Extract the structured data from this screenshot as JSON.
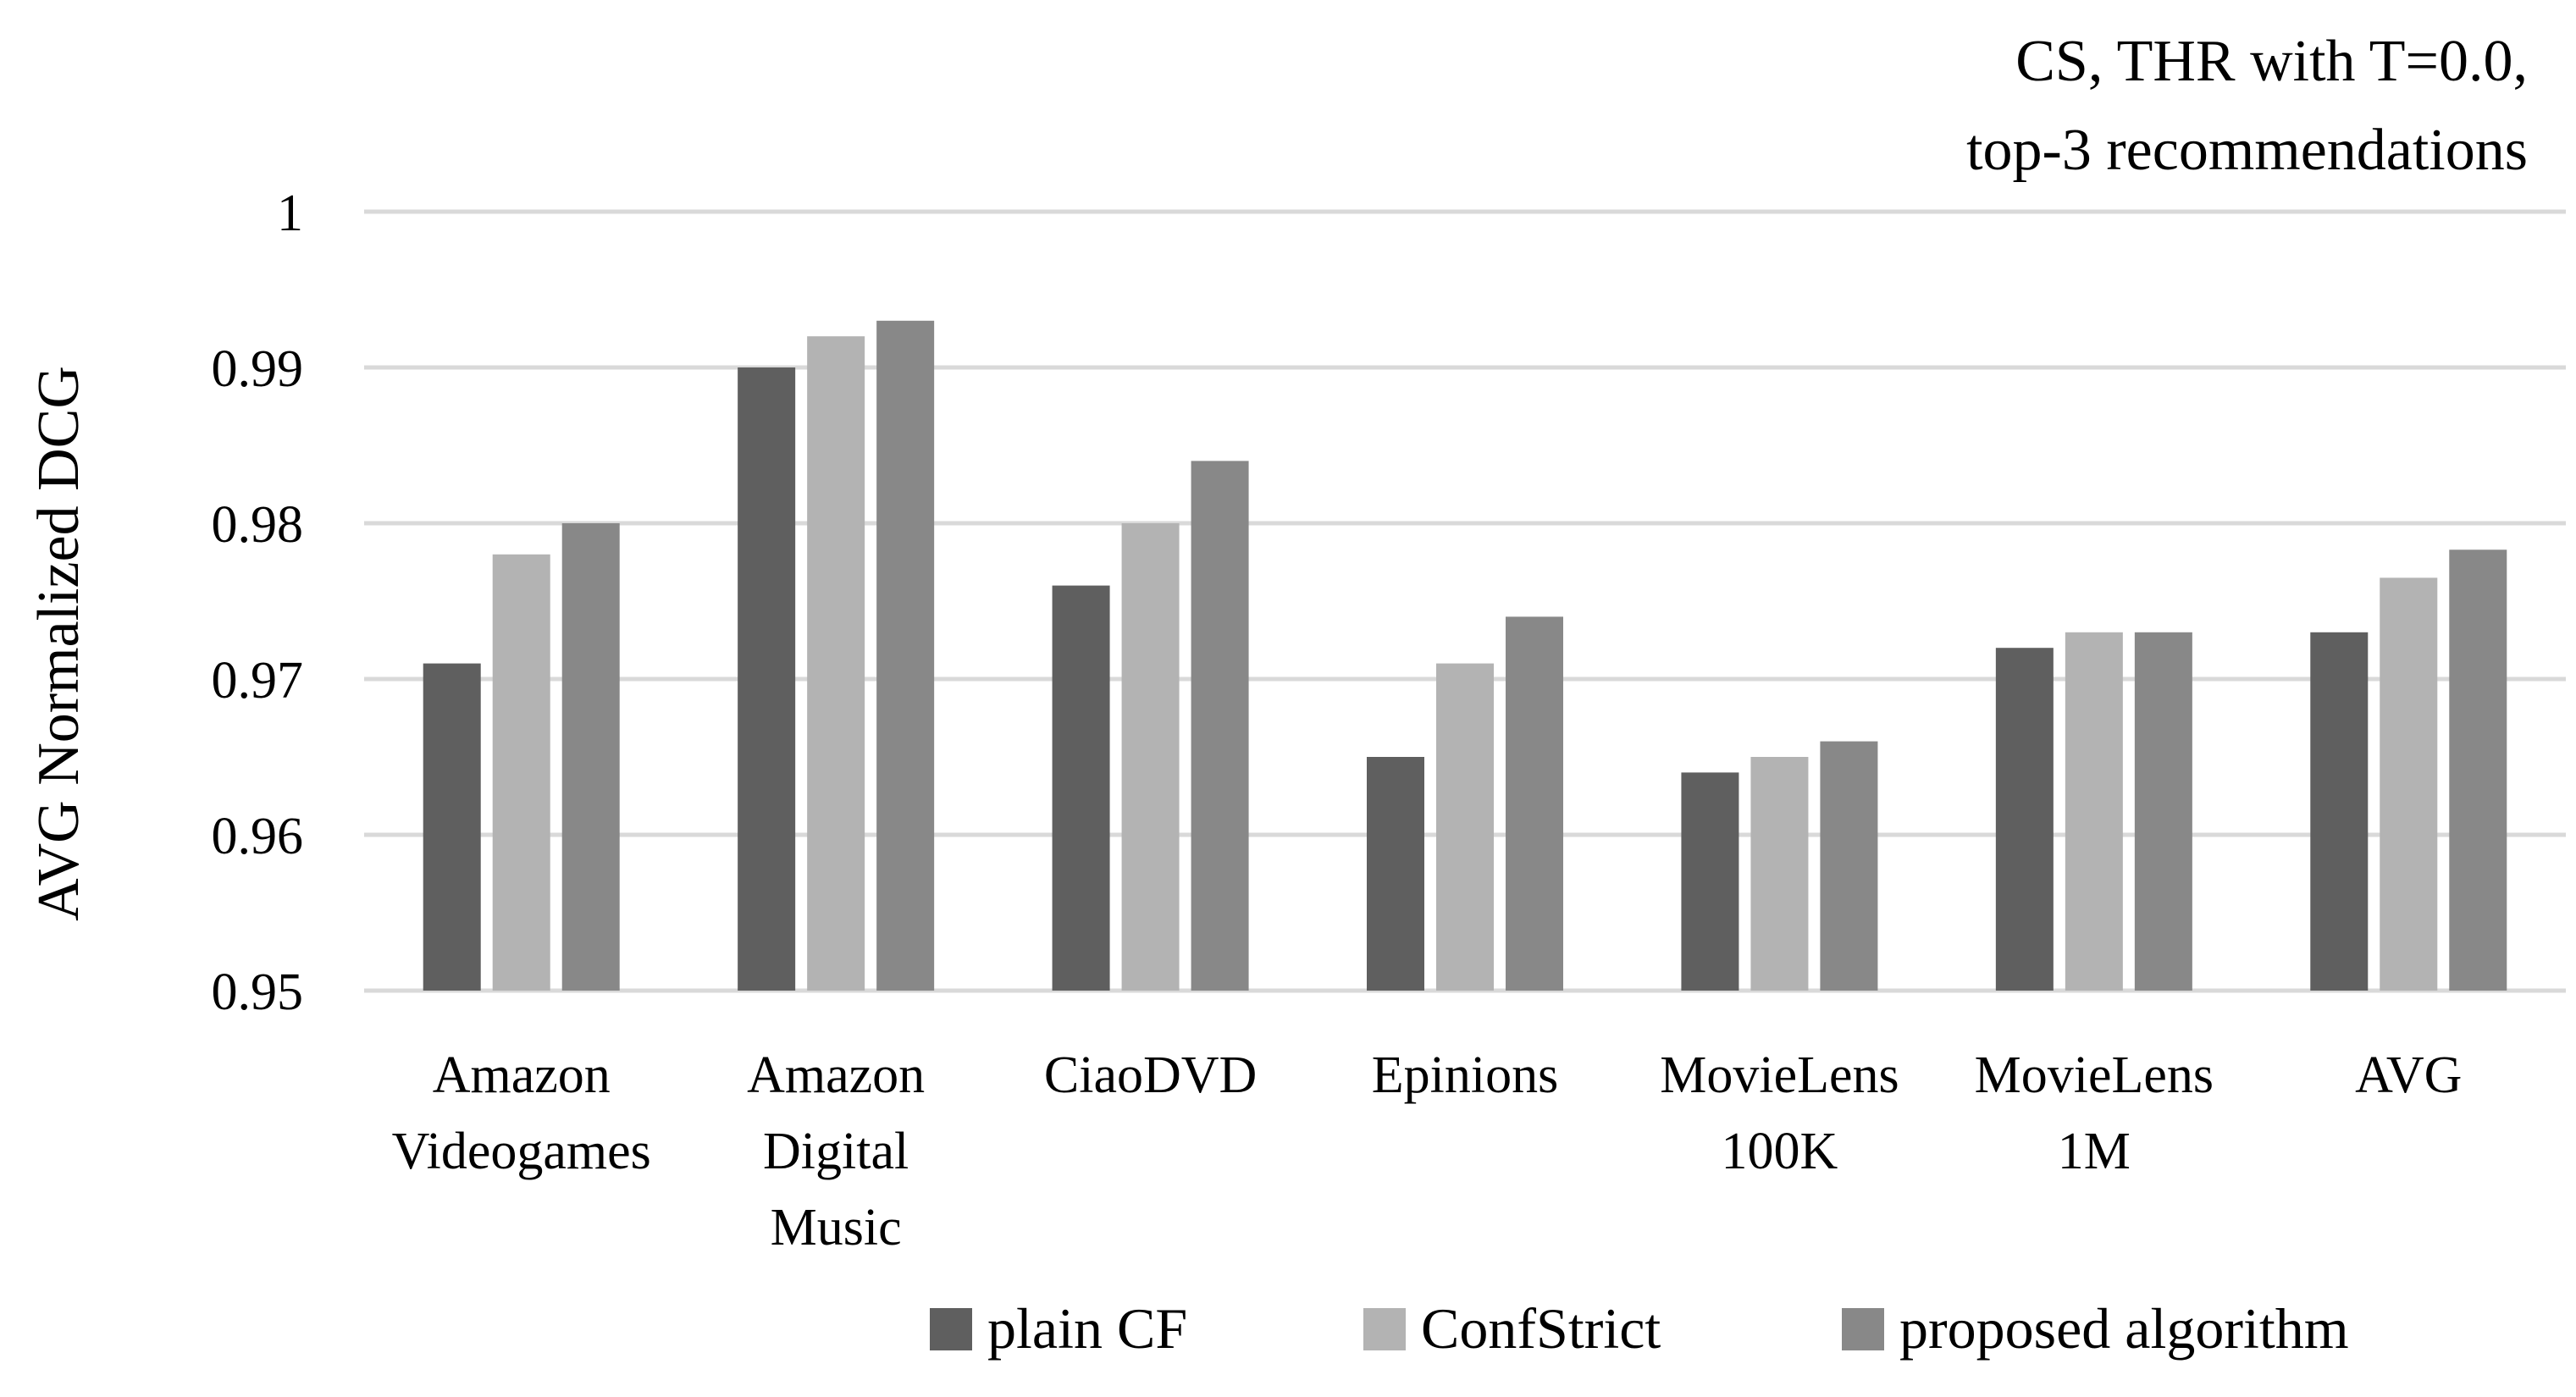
{
  "chart_data": {
    "type": "bar",
    "title_lines": [
      "CS, THR with T=0.0,",
      "top-3 recommendations"
    ],
    "xlabel": "",
    "ylabel": "AVG Normalized DCG",
    "ylim": [
      0.95,
      1.0
    ],
    "yticks": [
      0.95,
      0.96,
      0.97,
      0.98,
      0.99,
      1.0
    ],
    "ytick_labels": [
      "0.95",
      "0.96",
      "0.97",
      "0.98",
      "0.99",
      "1"
    ],
    "grid": true,
    "legend_position": "bottom",
    "categories": [
      [
        "Amazon",
        "Videogames"
      ],
      [
        "Amazon",
        "Digital",
        "Music"
      ],
      [
        "CiaoDVD"
      ],
      [
        "Epinions"
      ],
      [
        "MovieLens",
        "100K"
      ],
      [
        "MovieLens",
        "1M"
      ],
      [
        "AVG"
      ]
    ],
    "series": [
      {
        "name": "plain CF",
        "color": "#5f5f5f",
        "values": [
          0.971,
          0.99,
          0.976,
          0.965,
          0.964,
          0.972,
          0.973
        ]
      },
      {
        "name": "ConfStrict",
        "color": "#b3b3b3",
        "values": [
          0.978,
          0.992,
          0.98,
          0.971,
          0.965,
          0.973,
          0.9765
        ]
      },
      {
        "name": "proposed algorithm",
        "color": "#888888",
        "values": [
          0.98,
          0.993,
          0.984,
          0.974,
          0.966,
          0.973,
          0.9783
        ]
      }
    ]
  }
}
